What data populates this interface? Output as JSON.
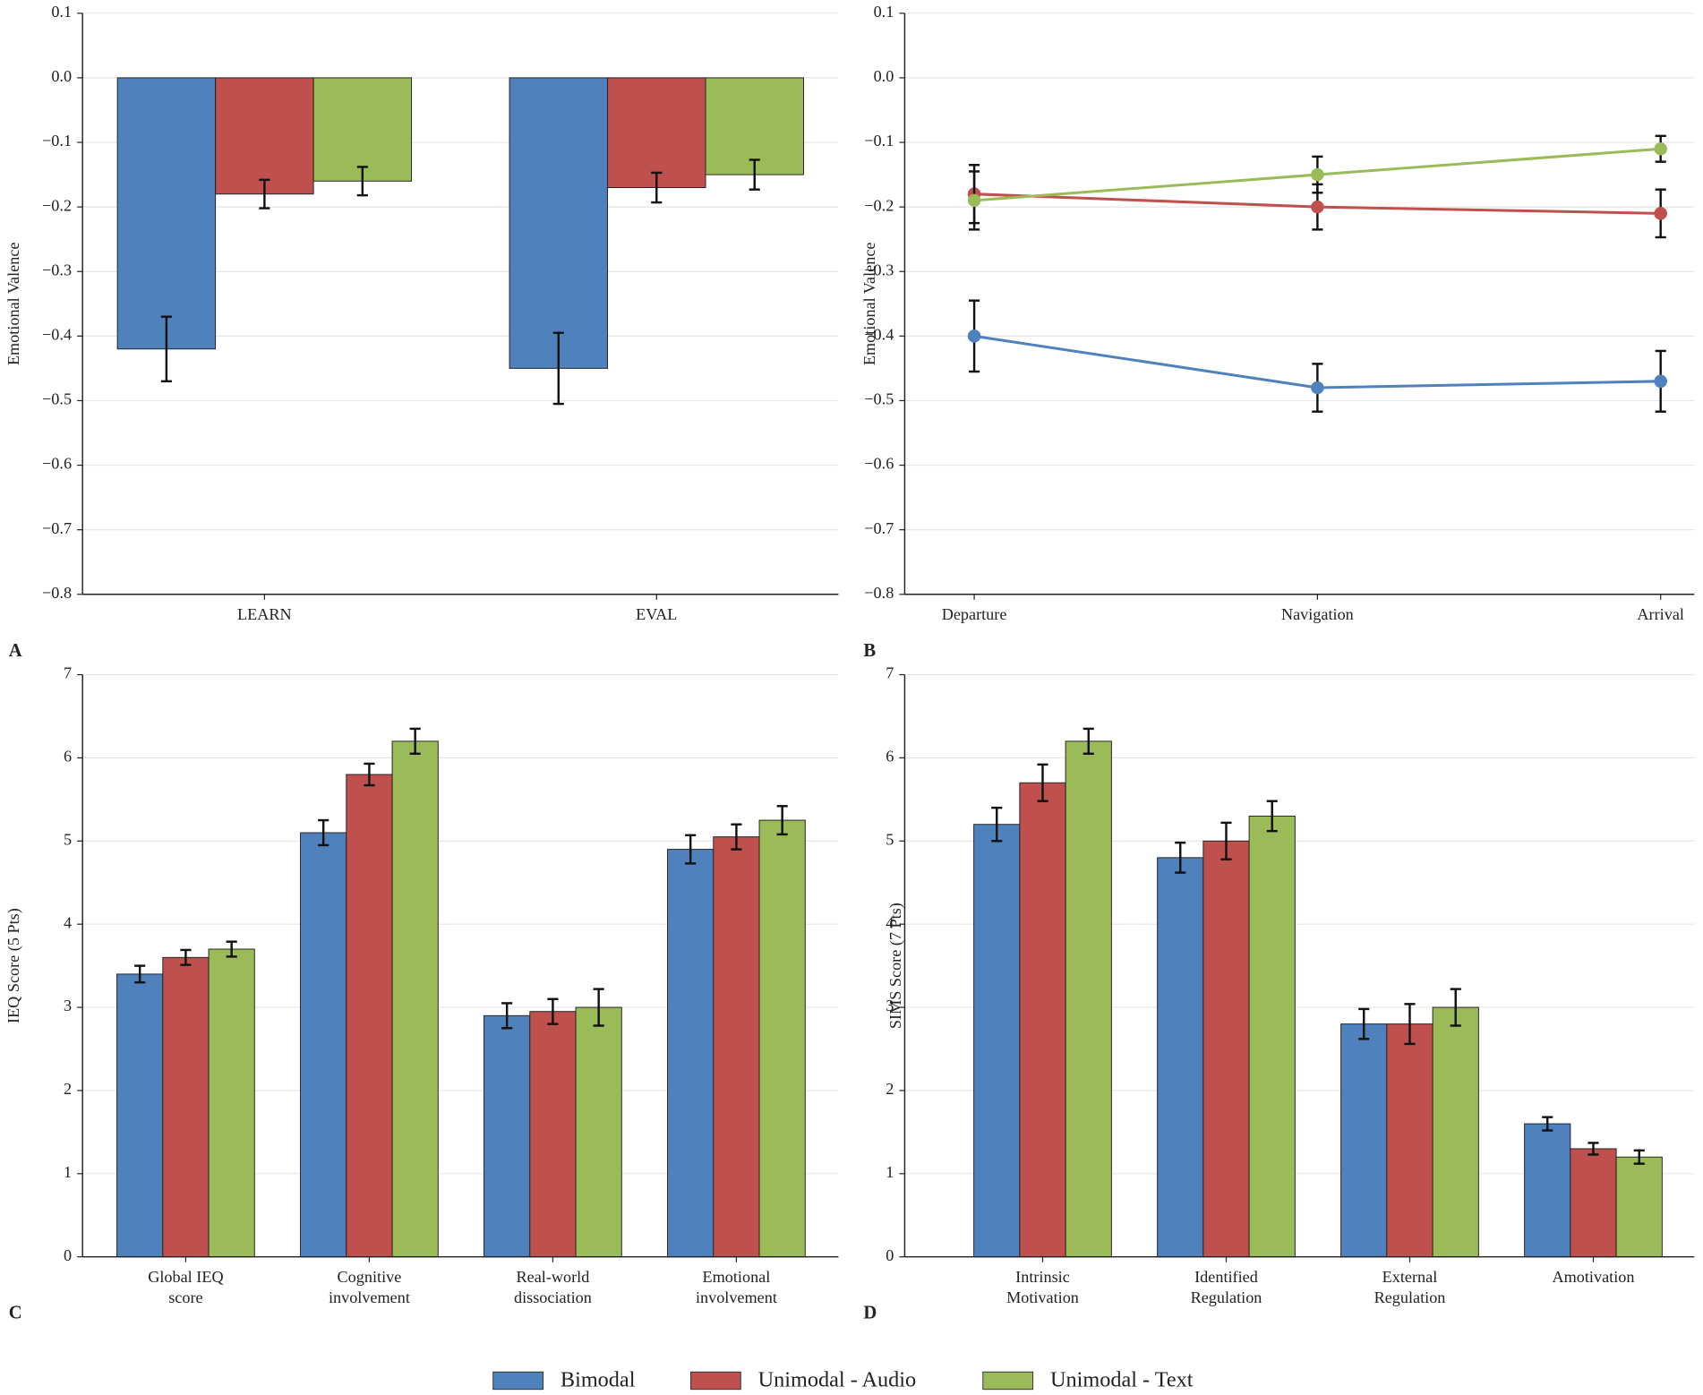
{
  "chart_data": [
    {
      "type": "bar",
      "panel_label": "A",
      "ylabel": "Emotional Valence",
      "categories": [
        "LEARN",
        "EVAL"
      ],
      "series": [
        {
          "name": "Bimodal",
          "color": "#4f81bd",
          "values": [
            -0.42,
            -0.45
          ],
          "errors": [
            0.05,
            0.055
          ]
        },
        {
          "name": "Unimodal - Audio",
          "color": "#c0504d",
          "values": [
            -0.18,
            -0.17
          ],
          "errors": [
            0.022,
            0.023
          ]
        },
        {
          "name": "Unimodal - Text",
          "color": "#9bbb59",
          "values": [
            -0.16,
            -0.15
          ],
          "errors": [
            0.022,
            0.023
          ]
        }
      ],
      "ylim": [
        -0.8,
        0.1
      ],
      "yticks": [
        {
          "value": -0.8,
          "label": "−0.8"
        },
        {
          "value": -0.7,
          "label": "−0.7"
        },
        {
          "value": -0.6,
          "label": "−0.6"
        },
        {
          "value": -0.5,
          "label": "−0.5"
        },
        {
          "value": -0.4,
          "label": "−0.4"
        },
        {
          "value": -0.3,
          "label": "−0.3"
        },
        {
          "value": -0.2,
          "label": "−0.2"
        },
        {
          "value": -0.1,
          "label": "−0.1"
        },
        {
          "value": 0,
          "label": "0.0"
        },
        0.1
      ],
      "grid": true
    },
    {
      "type": "line",
      "panel_label": "B",
      "ylabel": "Emotional Valence",
      "categories": [
        "Departure",
        "Navigation",
        "Arrival"
      ],
      "series": [
        {
          "name": "Bimodal",
          "color": "#4f81bd",
          "values": [
            -0.4,
            -0.48,
            -0.47
          ],
          "errors": [
            0.055,
            0.037,
            0.047
          ]
        },
        {
          "name": "Unimodal - Audio",
          "color": "#c0504d",
          "values": [
            -0.18,
            -0.2,
            -0.21
          ],
          "errors": [
            0.045,
            0.035,
            0.037
          ]
        },
        {
          "name": "Unimodal - Text",
          "color": "#9bbb59",
          "values": [
            -0.19,
            -0.15,
            -0.11
          ],
          "errors": [
            0.045,
            0.028,
            0.02
          ]
        }
      ],
      "ylim": [
        -0.8,
        0.1
      ],
      "yticks": [
        {
          "value": -0.8,
          "label": "−0.8"
        },
        {
          "value": -0.7,
          "label": "−0.7"
        },
        {
          "value": -0.6,
          "label": "−0.6"
        },
        {
          "value": -0.5,
          "label": "−0.5"
        },
        {
          "value": -0.4,
          "label": "−0.4"
        },
        {
          "value": -0.3,
          "label": "−0.3"
        },
        {
          "value": -0.2,
          "label": "−0.2"
        },
        {
          "value": -0.1,
          "label": "−0.1"
        },
        {
          "value": 0,
          "label": "0.0"
        },
        0.1
      ],
      "grid": true
    },
    {
      "type": "bar",
      "panel_label": "C",
      "ylabel": "IEQ Score (5 Pts)",
      "categories": [
        [
          "Global IEQ",
          "score"
        ],
        [
          "Cognitive",
          "involvement"
        ],
        [
          "Real-world",
          "dissociation"
        ],
        [
          "Emotional",
          "involvement"
        ]
      ],
      "series": [
        {
          "name": "Bimodal",
          "color": "#4f81bd",
          "values": [
            3.4,
            5.1,
            2.9,
            4.9
          ],
          "errors": [
            0.1,
            0.15,
            0.15,
            0.17
          ]
        },
        {
          "name": "Unimodal - Audio",
          "color": "#c0504d",
          "values": [
            3.6,
            5.8,
            2.95,
            5.05
          ],
          "errors": [
            0.09,
            0.13,
            0.15,
            0.15
          ]
        },
        {
          "name": "Unimodal - Text",
          "color": "#9bbb59",
          "values": [
            3.7,
            6.2,
            3.0,
            5.25
          ],
          "errors": [
            0.09,
            0.15,
            0.22,
            0.17
          ]
        }
      ],
      "ylim": [
        0,
        7
      ],
      "yticks": [
        0,
        1,
        2,
        3,
        4,
        5,
        6,
        7
      ],
      "grid": true
    },
    {
      "type": "bar",
      "panel_label": "D",
      "ylabel": "SIMS Score (7 Pts)",
      "categories": [
        [
          "Intrinsic",
          "Motivation"
        ],
        [
          "Identified",
          "Regulation"
        ],
        [
          "External",
          "Regulation"
        ],
        [
          "Amotivation"
        ]
      ],
      "series": [
        {
          "name": "Bimodal",
          "color": "#4f81bd",
          "values": [
            5.2,
            4.8,
            2.8,
            1.6
          ],
          "errors": [
            0.2,
            0.18,
            0.18,
            0.08
          ]
        },
        {
          "name": "Unimodal - Audio",
          "color": "#c0504d",
          "values": [
            5.7,
            5.0,
            2.8,
            1.3
          ],
          "errors": [
            0.22,
            0.22,
            0.24,
            0.07
          ]
        },
        {
          "name": "Unimodal - Text",
          "color": "#9bbb59",
          "values": [
            6.2,
            5.3,
            3.0,
            1.2
          ],
          "errors": [
            0.15,
            0.18,
            0.22,
            0.08
          ]
        }
      ],
      "ylim": [
        0,
        7
      ],
      "yticks": [
        0,
        1,
        2,
        3,
        4,
        5,
        6,
        7
      ],
      "grid": true
    }
  ]
}
